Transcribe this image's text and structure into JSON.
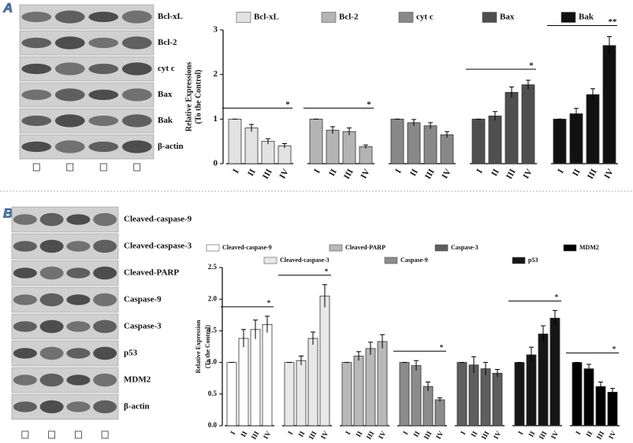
{
  "panel_labels": [
    "A",
    "B"
  ],
  "blots": [
    [
      "Bcl-xL",
      "Bcl-2",
      "cyt c",
      "Bax",
      "Bak",
      "β-actin"
    ],
    [
      "Cleaved-caspase-9",
      "Cleaved-caspase-3",
      "Cleaved-PARP",
      "Caspase-9",
      "Caspase-3",
      "p53",
      "MDM2",
      "β-actin"
    ]
  ],
  "chart_data": [
    {
      "type": "bar",
      "ylabel": [
        "Relative Expressions",
        "(To the Control)"
      ],
      "categories": [
        "I",
        "II",
        "III",
        "IV"
      ],
      "ylim": [
        0,
        3
      ],
      "yticks": [
        0,
        1,
        2,
        3
      ],
      "series": [
        {
          "name": "Bcl-xL",
          "color": "#e2e2e2",
          "values": [
            1.0,
            0.8,
            0.5,
            0.4
          ],
          "errors": [
            0.0,
            0.08,
            0.06,
            0.05
          ],
          "significance": "*"
        },
        {
          "name": "Bcl-2",
          "color": "#b4b4b4",
          "values": [
            1.0,
            0.75,
            0.72,
            0.38
          ],
          "errors": [
            0.0,
            0.08,
            0.08,
            0.04
          ],
          "significance": "*"
        },
        {
          "name": "cyt c",
          "color": "#888888",
          "values": [
            1.0,
            0.92,
            0.85,
            0.65
          ],
          "errors": [
            0.0,
            0.07,
            0.07,
            0.07
          ]
        },
        {
          "name": "Bax",
          "color": "#4f4f4f",
          "values": [
            1.0,
            1.07,
            1.6,
            1.77
          ],
          "errors": [
            0.0,
            0.1,
            0.12,
            0.1
          ],
          "significance": "*"
        },
        {
          "name": "Bak",
          "color": "#111111",
          "values": [
            1.0,
            1.12,
            1.55,
            2.65
          ],
          "errors": [
            0.0,
            0.12,
            0.13,
            0.2
          ],
          "significance": "**"
        }
      ]
    },
    {
      "type": "bar",
      "ylabel": [
        "Relative Expression",
        "(To the Control)"
      ],
      "categories": [
        "I",
        "II",
        "III",
        "IV"
      ],
      "ylim": [
        0,
        2.5
      ],
      "yticks": [
        {
          "value": 0,
          "label": "0.0"
        },
        0.5,
        {
          "value": 1,
          "label": "1.0"
        },
        1.5,
        {
          "value": 2,
          "label": "2.0"
        },
        2.5
      ],
      "series": [
        {
          "name": "Cleaved-caspase-9",
          "color": "#ffffff",
          "values": [
            1.0,
            1.38,
            1.52,
            1.6
          ],
          "errors": [
            0.0,
            0.14,
            0.15,
            0.13
          ],
          "significance": "*"
        },
        {
          "name": "Cleaved-caspase-3",
          "color": "#e8e8e8",
          "values": [
            1.0,
            1.03,
            1.38,
            2.05
          ],
          "errors": [
            0.0,
            0.07,
            0.1,
            0.18
          ],
          "significance": "*"
        },
        {
          "name": "Cleaved-PARP",
          "color": "#b8b8b8",
          "values": [
            1.0,
            1.1,
            1.22,
            1.33
          ],
          "errors": [
            0.0,
            0.07,
            0.1,
            0.11
          ]
        },
        {
          "name": "Caspase-9",
          "color": "#8c8c8c",
          "values": [
            1.0,
            0.95,
            0.62,
            0.41
          ],
          "errors": [
            0.0,
            0.08,
            0.07,
            0.03
          ],
          "significance": "*"
        },
        {
          "name": "Caspase-3",
          "color": "#5e5e5e",
          "values": [
            1.0,
            0.96,
            0.9,
            0.83
          ],
          "errors": [
            0.0,
            0.13,
            0.1,
            0.06
          ]
        },
        {
          "name": "p53",
          "color": "#161616",
          "values": [
            1.0,
            1.12,
            1.45,
            1.7
          ],
          "errors": [
            0.0,
            0.12,
            0.13,
            0.12
          ],
          "significance": "*"
        },
        {
          "name": "MDM2",
          "color": "#000000",
          "values": [
            1.0,
            0.9,
            0.62,
            0.53
          ],
          "errors": [
            0.0,
            0.07,
            0.07,
            0.06
          ],
          "significance": "*"
        }
      ]
    }
  ]
}
